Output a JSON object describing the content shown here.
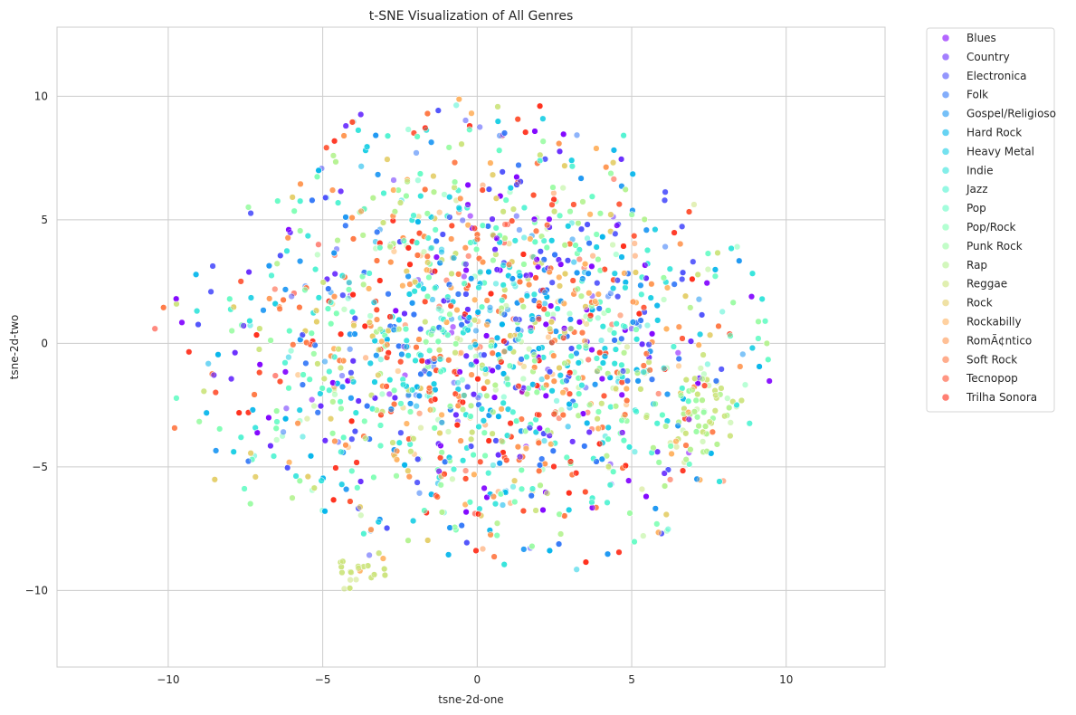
{
  "chart_data": {
    "type": "scatter",
    "title": "t-SNE Visualization of All Genres",
    "xlabel": "tsne-2d-one",
    "ylabel": "tsne-2d-two",
    "xlim": [
      -13.6,
      13.2
    ],
    "ylim": [
      -13.1,
      12.8
    ],
    "xticks": [
      -10,
      -5,
      0,
      5,
      10
    ],
    "yticks": [
      -10,
      -5,
      0,
      5,
      10
    ],
    "xtick_labels": [
      "−10",
      "−5",
      "0",
      "5",
      "10"
    ],
    "ytick_labels": [
      "−10",
      "−5",
      "0",
      "5",
      "10"
    ],
    "grid": true,
    "legend_position": "outside-right-top",
    "point_count": 5200,
    "series": [
      {
        "name": "Blues",
        "color": "#8000ff"
      },
      {
        "name": "Country",
        "color": "#6629fe"
      },
      {
        "name": "Electronica",
        "color": "#4c50fc"
      },
      {
        "name": "Folk",
        "color": "#3176f8"
      },
      {
        "name": "Gospel/Religioso",
        "color": "#1996f3"
      },
      {
        "name": "Hard Rock",
        "color": "#00b5eb"
      },
      {
        "name": "Heavy Metal",
        "color": "#18cde4"
      },
      {
        "name": "Indie",
        "color": "#32e3db"
      },
      {
        "name": "Jazz",
        "color": "#4ef3d1"
      },
      {
        "name": "Pop",
        "color": "#66fcc5"
      },
      {
        "name": "Pop/Rock",
        "color": "#80ffb4"
      },
      {
        "name": "Punk Rock",
        "color": "#9afca4"
      },
      {
        "name": "Rap",
        "color": "#b4f28f"
      },
      {
        "name": "Reggae",
        "color": "#cce47c"
      },
      {
        "name": "Rock",
        "color": "#e4cd68"
      },
      {
        "name": "Rockabilly",
        "color": "#ffb360"
      },
      {
        "name": "RomÃ¢ntico",
        "color": "#ff9650"
      },
      {
        "name": "Soft Rock",
        "color": "#ff7641"
      },
      {
        "name": "Tecnopop",
        "color": "#ff5030"
      },
      {
        "name": "Trilha Sonora",
        "color": "#ff2a15"
      }
    ]
  }
}
